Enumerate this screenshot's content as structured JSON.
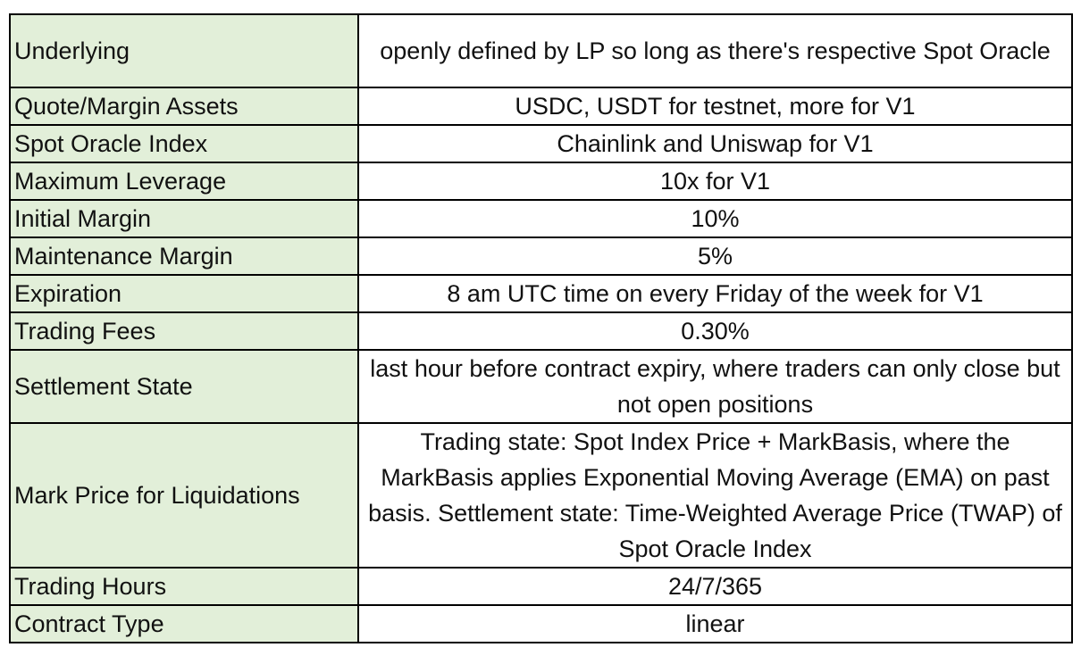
{
  "rows": [
    {
      "label": "Underlying",
      "value": "openly defined by LP so long as there's respective Spot Oracle"
    },
    {
      "label": "Quote/Margin Assets",
      "value": "USDC, USDT for testnet, more for V1"
    },
    {
      "label": "Spot Oracle Index",
      "value": "Chainlink and Uniswap for V1"
    },
    {
      "label": "Maximum Leverage",
      "value": "10x for V1"
    },
    {
      "label": "Initial Margin",
      "value": "10%"
    },
    {
      "label": "Maintenance Margin",
      "value": "5%"
    },
    {
      "label": "Expiration",
      "value": "8 am UTC time on every Friday of the week for V1"
    },
    {
      "label": "Trading Fees",
      "value": "0.30%"
    },
    {
      "label": "Settlement State",
      "value": "last hour before contract expiry, where traders can only close but not open positions"
    },
    {
      "label": "Mark Price for Liquidations",
      "value": "Trading state: Spot Index Price + MarkBasis, where the MarkBasis applies Exponential Moving Average (EMA) on past basis. Settlement state:  Time-Weighted Average Price (TWAP) of Spot Oracle Index"
    },
    {
      "label": "Trading Hours",
      "value": "24/7/365"
    },
    {
      "label": "Contract Type",
      "value": "linear"
    }
  ]
}
